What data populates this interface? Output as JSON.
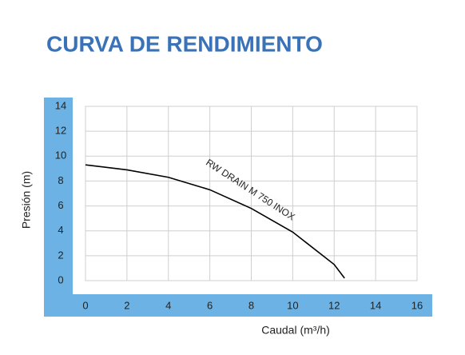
{
  "chart_data": {
    "type": "line",
    "title": "CURVA DE RENDIMIENTO",
    "x_label": "Caudal (m³/h)",
    "y_label": "Presión  (m)",
    "x": [
      0,
      2,
      4,
      6,
      8,
      10,
      12,
      12.5
    ],
    "series": [
      {
        "name": "RW DRAIN M 750 INOX",
        "color": "#000000",
        "values": [
          9.3,
          8.9,
          8.3,
          7.3,
          5.8,
          3.9,
          1.3,
          0.2
        ]
      }
    ],
    "xlim": [
      0,
      16
    ],
    "xticks": [
      0,
      2,
      4,
      6,
      8,
      10,
      12,
      14,
      16
    ],
    "ylim": [
      0,
      14
    ],
    "yticks": [
      0,
      2,
      4,
      6,
      8,
      10,
      12,
      14
    ],
    "grid": true,
    "axis_band_color": "#6cb2e4",
    "title_color": "#3a72b8"
  }
}
